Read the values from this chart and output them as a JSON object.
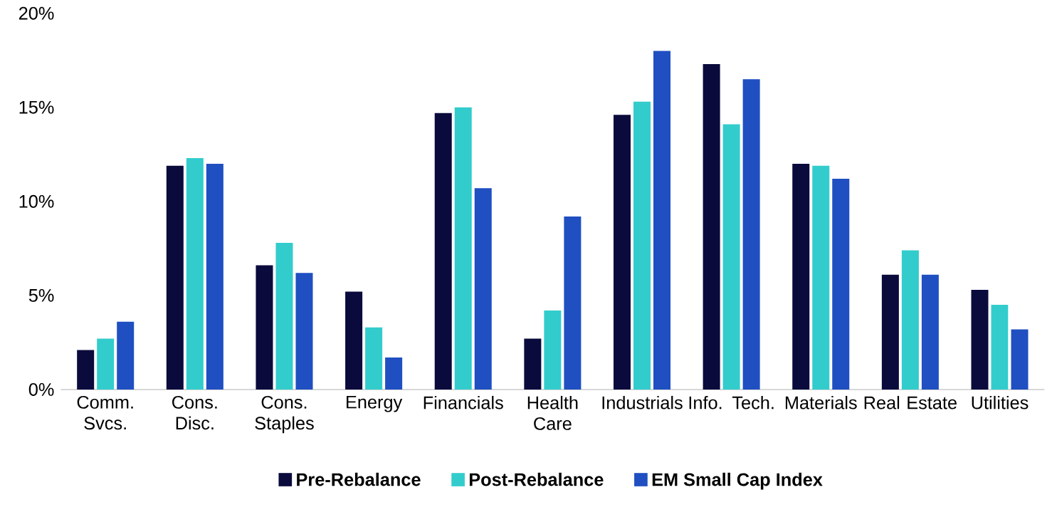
{
  "chart_data": {
    "type": "bar",
    "categories": [
      "Comm. Svcs.",
      "Cons. Disc.",
      "Cons. Staples",
      "Energy",
      "Financials",
      "Health Care",
      "Industrials",
      "Info. Tech.",
      "Materials",
      "Real Estate",
      "Utilities"
    ],
    "series": [
      {
        "name": "Pre-Rebalance",
        "color": "#0a0a3c",
        "values": [
          2.1,
          11.9,
          6.6,
          5.2,
          14.7,
          2.7,
          14.6,
          17.3,
          12.0,
          6.1,
          5.3
        ]
      },
      {
        "name": "Post-Rebalance",
        "color": "#33cccc",
        "values": [
          2.7,
          12.3,
          7.8,
          3.3,
          15.0,
          4.2,
          15.3,
          14.1,
          11.9,
          7.4,
          4.5
        ]
      },
      {
        "name": "EM Small Cap Index",
        "color": "#1f4fc1",
        "values": [
          3.6,
          12.0,
          6.2,
          1.7,
          10.7,
          9.2,
          18.0,
          16.5,
          11.2,
          6.1,
          3.2
        ]
      }
    ],
    "ylim": [
      0,
      20
    ],
    "yticks": [
      {
        "value": 0,
        "label": "0%"
      },
      {
        "value": 5,
        "label": "5%"
      },
      {
        "value": 10,
        "label": "10%"
      },
      {
        "value": 15,
        "label": "15%"
      },
      {
        "value": 20,
        "label": "20%"
      }
    ],
    "grid": false,
    "legend": "bottom"
  }
}
